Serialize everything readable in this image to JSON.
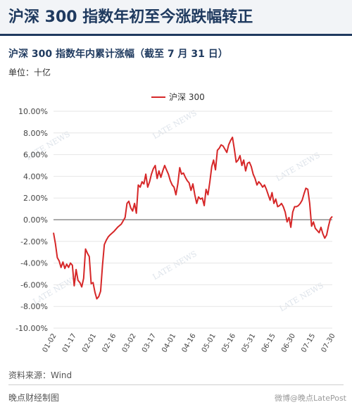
{
  "header": {
    "title": "沪深 300 指数年初至今涨跌幅转正"
  },
  "chart_header": {
    "subtitle": "沪深 300 指数年内累计涨幅（截至 7 月 31 日）",
    "unit": "单位：十亿"
  },
  "footer": {
    "source": "资料来源：Wind",
    "producer": "晚点财经制图",
    "watermark": "微博@晚点LatePost"
  },
  "background_watermark": "LATE NEWS",
  "colors": {
    "series": "#d62728",
    "title": "#1f3a5f",
    "zero_line": "#555555",
    "grid": "#e6e6e6"
  },
  "chart_data": {
    "type": "line",
    "title": "沪深 300 指数年内累计涨幅（截至 7 月 31 日）",
    "ylabel": "单位：十亿",
    "xlabel": "",
    "ylim": [
      -10,
      10
    ],
    "yticks": [
      "10.00%",
      "8.00%",
      "6.00%",
      "4.00%",
      "2.00%",
      "0.00%",
      "-2.00%",
      "-4.00%",
      "-6.00%",
      "-8.00%",
      "-10.00%"
    ],
    "ytick_values": [
      10,
      8,
      6,
      4,
      2,
      0,
      -2,
      -4,
      -6,
      -8,
      -10
    ],
    "xticks": [
      "01-02",
      "01-17",
      "02-01",
      "02-16",
      "03-02",
      "03-17",
      "04-01",
      "04-16",
      "05-01",
      "05-16",
      "05-31",
      "06-15",
      "06-30",
      "07-15",
      "07-30"
    ],
    "xtick_days": [
      0,
      15,
      30,
      45,
      60,
      75,
      90,
      105,
      120,
      135,
      150,
      165,
      180,
      195,
      210
    ],
    "x_range": [
      0,
      210
    ],
    "grid": true,
    "legend": "top-center",
    "series": [
      {
        "name": "沪深 300",
        "points": [
          [
            0,
            -1.2
          ],
          [
            1,
            -2.2
          ],
          [
            2,
            -3.5
          ],
          [
            3,
            -3.8
          ],
          [
            4,
            -4.4
          ],
          [
            5,
            -3.9
          ],
          [
            6,
            -4.5
          ],
          [
            7,
            -4.1
          ],
          [
            8,
            -4.4
          ],
          [
            9,
            -4.0
          ],
          [
            10,
            -4.2
          ],
          [
            11,
            -6.1
          ],
          [
            12,
            -4.6
          ],
          [
            13,
            -5.6
          ],
          [
            14,
            -5.8
          ],
          [
            15,
            -6.2
          ],
          [
            16,
            -5.4
          ],
          [
            17,
            -2.7
          ],
          [
            18,
            -3.1
          ],
          [
            19,
            -3.4
          ],
          [
            20,
            -5.9
          ],
          [
            21,
            -5.8
          ],
          [
            22,
            -6.7
          ],
          [
            23,
            -7.3
          ],
          [
            24,
            -7.1
          ],
          [
            25,
            -6.6
          ],
          [
            26,
            -4.2
          ],
          [
            27,
            -2.3
          ],
          [
            28,
            -1.9
          ],
          [
            29,
            -1.6
          ],
          [
            30,
            -1.4
          ],
          [
            32,
            -1.1
          ],
          [
            34,
            -0.7
          ],
          [
            36,
            -0.4
          ],
          [
            38,
            0.2
          ],
          [
            39,
            1.5
          ],
          [
            40,
            1.7
          ],
          [
            41,
            1.1
          ],
          [
            42,
            0.8
          ],
          [
            43,
            1.5
          ],
          [
            44,
            0.6
          ],
          [
            45,
            3.2
          ],
          [
            46,
            3.0
          ],
          [
            47,
            3.5
          ],
          [
            48,
            3.3
          ],
          [
            49,
            4.2
          ],
          [
            50,
            3.0
          ],
          [
            51,
            3.5
          ],
          [
            52,
            4.2
          ],
          [
            53,
            4.7
          ],
          [
            54,
            5.0
          ],
          [
            55,
            3.8
          ],
          [
            56,
            4.5
          ],
          [
            57,
            3.9
          ],
          [
            58,
            4.5
          ],
          [
            59,
            5.0
          ],
          [
            60,
            4.6
          ],
          [
            61,
            4.2
          ],
          [
            62,
            3.6
          ],
          [
            63,
            3.2
          ],
          [
            64,
            3.0
          ],
          [
            65,
            2.3
          ],
          [
            66,
            3.3
          ],
          [
            67,
            4.8
          ],
          [
            68,
            4.2
          ],
          [
            69,
            4.3
          ],
          [
            70,
            3.9
          ],
          [
            71,
            3.6
          ],
          [
            72,
            3.4
          ],
          [
            73,
            2.7
          ],
          [
            74,
            3.3
          ],
          [
            75,
            2.3
          ],
          [
            76,
            1.5
          ],
          [
            77,
            2.1
          ],
          [
            78,
            1.9
          ],
          [
            79,
            2.0
          ],
          [
            80,
            1.3
          ],
          [
            81,
            2.8
          ],
          [
            82,
            2.3
          ],
          [
            83,
            3.5
          ],
          [
            84,
            4.9
          ],
          [
            85,
            5.5
          ],
          [
            86,
            4.6
          ],
          [
            87,
            6.4
          ],
          [
            88,
            6.6
          ],
          [
            89,
            6.9
          ],
          [
            90,
            6.8
          ],
          [
            91,
            6.5
          ],
          [
            92,
            6.2
          ],
          [
            93,
            6.9
          ],
          [
            94,
            7.3
          ],
          [
            95,
            7.6
          ],
          [
            96,
            6.5
          ],
          [
            97,
            5.3
          ],
          [
            98,
            5.5
          ],
          [
            99,
            5.9
          ],
          [
            100,
            5.0
          ],
          [
            101,
            5.5
          ],
          [
            102,
            4.5
          ],
          [
            103,
            5.2
          ],
          [
            104,
            5.3
          ],
          [
            105,
            4.9
          ],
          [
            106,
            4.2
          ],
          [
            107,
            3.8
          ],
          [
            108,
            3.2
          ],
          [
            109,
            3.5
          ],
          [
            110,
            3.3
          ],
          [
            111,
            3.0
          ],
          [
            112,
            3.2
          ],
          [
            113,
            2.8
          ],
          [
            114,
            2.3
          ],
          [
            115,
            1.8
          ],
          [
            116,
            2.5
          ],
          [
            117,
            1.5
          ],
          [
            118,
            1.9
          ],
          [
            119,
            1.2
          ],
          [
            120,
            1.3
          ],
          [
            121,
            1.5
          ],
          [
            122,
            1.2
          ],
          [
            123,
            0.7
          ],
          [
            124,
            -0.2
          ],
          [
            125,
            0.2
          ],
          [
            126,
            -0.7
          ],
          [
            127,
            0.7
          ],
          [
            128,
            1.2
          ],
          [
            129,
            1.2
          ],
          [
            130,
            1.3
          ],
          [
            131,
            1.5
          ],
          [
            132,
            1.8
          ],
          [
            133,
            2.4
          ],
          [
            134,
            2.9
          ],
          [
            135,
            2.8
          ],
          [
            136,
            1.5
          ],
          [
            137,
            -0.6
          ],
          [
            138,
            -0.2
          ],
          [
            139,
            -0.8
          ],
          [
            140,
            -1.0
          ],
          [
            141,
            -1.2
          ],
          [
            142,
            -0.7
          ],
          [
            143,
            -1.3
          ],
          [
            144,
            -1.7
          ],
          [
            145,
            -1.4
          ],
          [
            146,
            -0.6
          ],
          [
            147,
            0.1
          ],
          [
            148,
            0.3
          ]
        ]
      }
    ]
  }
}
